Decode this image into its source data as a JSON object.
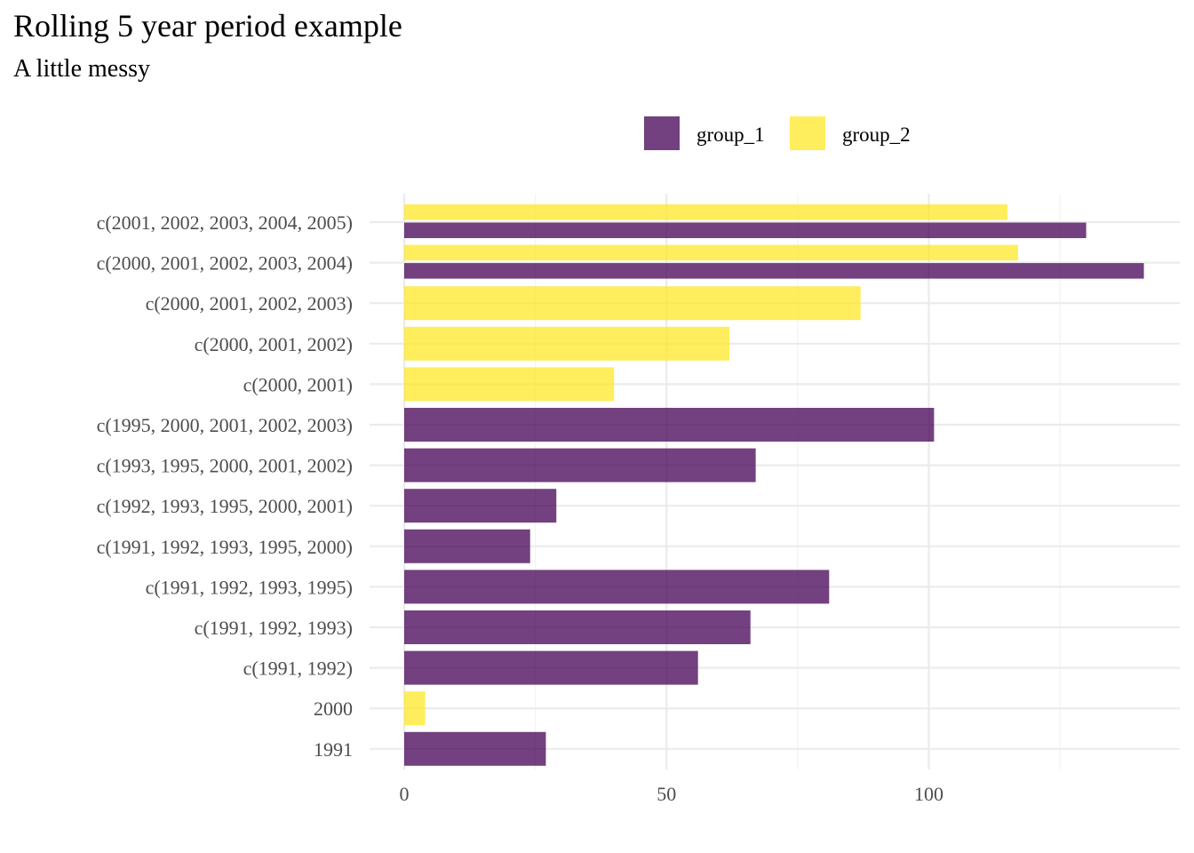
{
  "chart_data": {
    "type": "bar",
    "orientation": "horizontal",
    "title": "Rolling 5 year period example",
    "subtitle": "A little messy",
    "xlabel": "",
    "ylabel": "",
    "xlim": [
      0,
      140
    ],
    "x_ticks": [
      0,
      50,
      100
    ],
    "grid": true,
    "legend_position": "top",
    "categories": [
      "1991",
      "2000",
      "c(1991, 1992)",
      "c(1991, 1992, 1993)",
      "c(1991, 1992, 1993, 1995)",
      "c(1991, 1992, 1993, 1995, 2000)",
      "c(1992, 1993, 1995, 2000, 2001)",
      "c(1993, 1995, 2000, 2001, 2002)",
      "c(1995, 2000, 2001, 2002, 2003)",
      "c(2000, 2001)",
      "c(2000, 2001, 2002)",
      "c(2000, 2001, 2002, 2003)",
      "c(2000, 2001, 2002, 2003, 2004)",
      "c(2001, 2002, 2003, 2004, 2005)"
    ],
    "series": [
      {
        "name": "group_1",
        "color": "#440154",
        "values": [
          27,
          null,
          56,
          66,
          81,
          24,
          29,
          67,
          101,
          null,
          null,
          null,
          141,
          130
        ]
      },
      {
        "name": "group_2",
        "color": "#FDE725",
        "values": [
          null,
          4,
          null,
          null,
          null,
          null,
          null,
          null,
          null,
          40,
          62,
          87,
          117,
          115
        ]
      }
    ],
    "bar_opacity": 0.75
  }
}
